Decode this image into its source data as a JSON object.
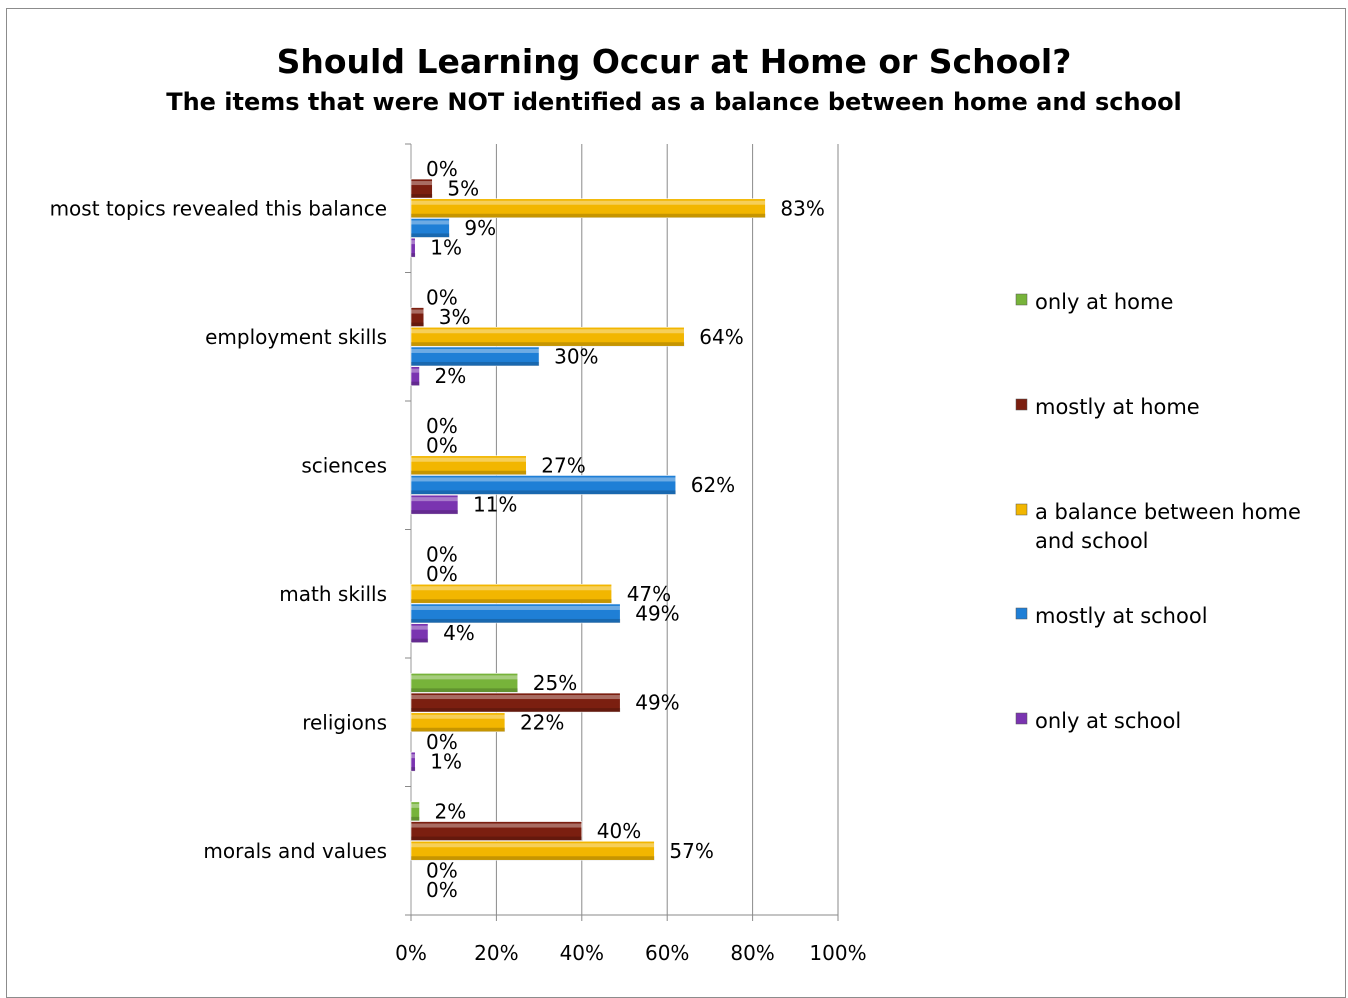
{
  "chart_data": {
    "type": "bar",
    "orientation": "horizontal",
    "title": "Should Learning Occur at Home or School?",
    "subtitle": "The items that were NOT identified as a balance between home and school",
    "categories": [
      "most topics revealed this balance",
      "employment skills",
      "sciences",
      "math skills",
      "religions",
      "morals and values"
    ],
    "series": [
      {
        "name": "only at home",
        "color": "#77b33a",
        "values": [
          0,
          0,
          0,
          0,
          25,
          2
        ],
        "labels": [
          "0%",
          "0%",
          "0%",
          "0%",
          "25%",
          "2%"
        ]
      },
      {
        "name": "mostly at home",
        "color": "#7b1f10",
        "values": [
          5,
          3,
          0,
          0,
          49,
          40
        ],
        "labels": [
          "5%",
          "3%",
          "0%",
          "0%",
          "49%",
          "40%"
        ]
      },
      {
        "name": "a balance between home and school",
        "color": "#f2b600",
        "values": [
          83,
          64,
          27,
          47,
          22,
          57
        ],
        "labels": [
          "83%",
          "64%",
          "27%",
          "47%",
          "22%",
          "57%"
        ]
      },
      {
        "name": "mostly at school",
        "color": "#1f7fd6",
        "values": [
          9,
          30,
          62,
          49,
          0,
          0
        ],
        "labels": [
          "9%",
          "30%",
          "62%",
          "49%",
          "0%",
          "0%"
        ]
      },
      {
        "name": "only at school",
        "color": "#7a34b0",
        "values": [
          1,
          2,
          11,
          4,
          1,
          0
        ],
        "labels": [
          "1%",
          "2%",
          "11%",
          "4%",
          "1%",
          "0%"
        ]
      }
    ],
    "x_ticks": [
      "0%",
      "20%",
      "40%",
      "60%",
      "80%",
      "100%"
    ],
    "xlim": [
      0,
      100
    ],
    "grid": true,
    "legend_position": "right"
  }
}
